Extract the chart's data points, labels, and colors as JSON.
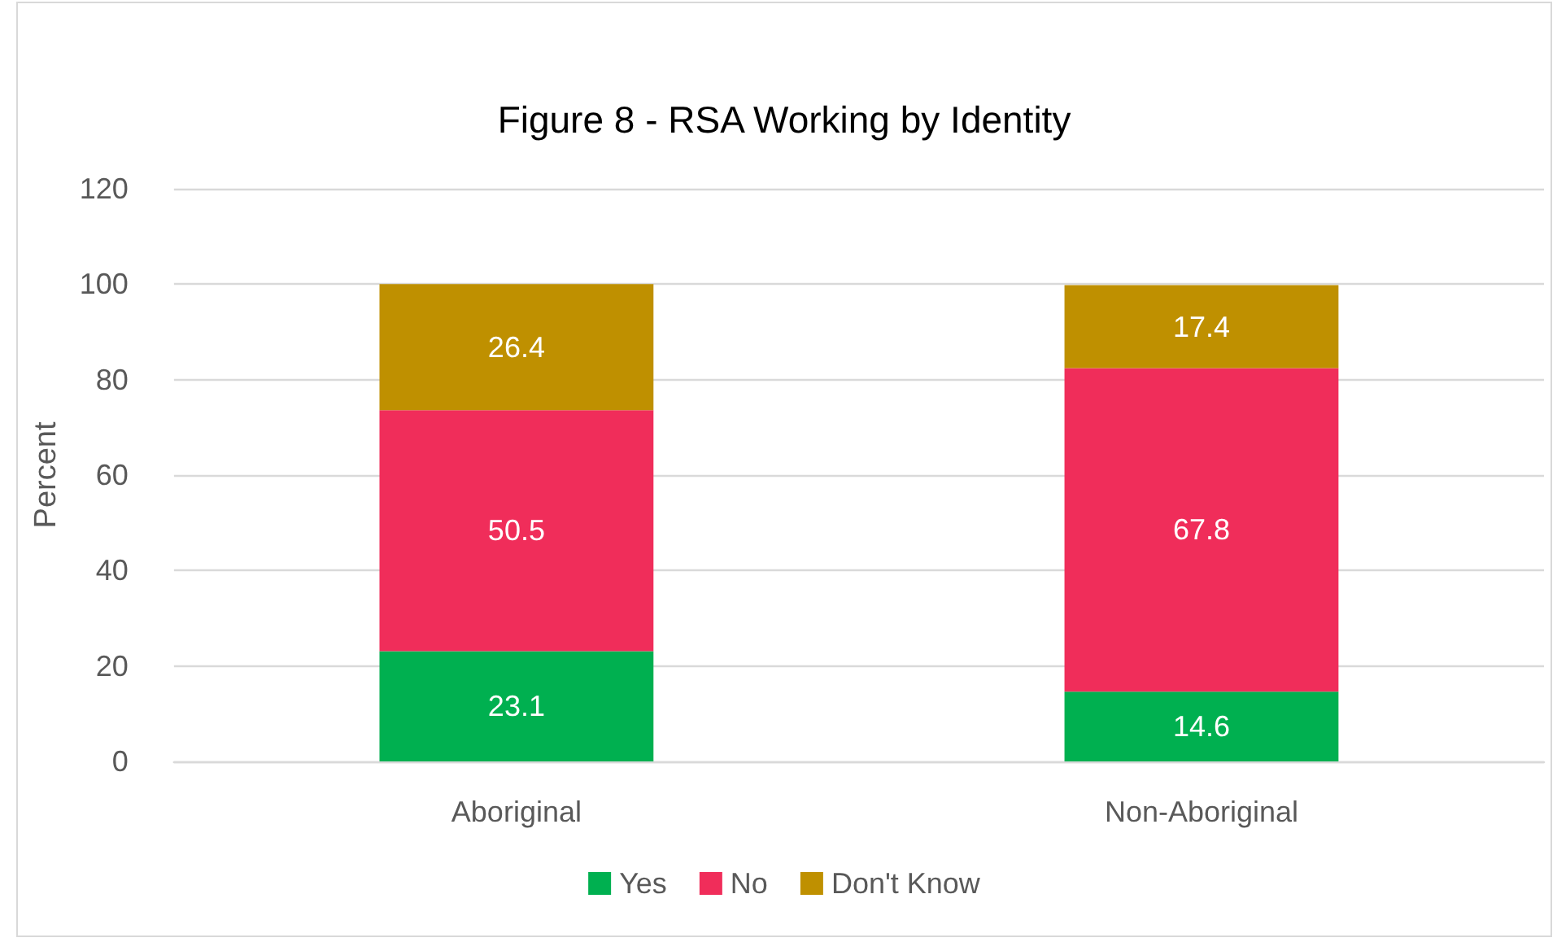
{
  "chart_data": {
    "type": "bar",
    "title": "Figure 8 - RSA Working by Identity",
    "ylabel": "Percent",
    "categories": [
      "Aboriginal",
      "Non-Aboriginal"
    ],
    "series": [
      {
        "name": "Yes",
        "color": "#00b050",
        "values": [
          23.1,
          14.6
        ]
      },
      {
        "name": "No",
        "color": "#f02d5a",
        "values": [
          50.5,
          67.8
        ]
      },
      {
        "name": "Don't Know",
        "color": "#bf9000",
        "values": [
          26.4,
          17.4
        ]
      }
    ],
    "stacked": true,
    "ylim": [
      0,
      120
    ],
    "yticks": [
      0,
      20,
      40,
      60,
      80,
      100,
      120
    ],
    "grid": "y",
    "legend": "bottom",
    "data_labels": true
  }
}
